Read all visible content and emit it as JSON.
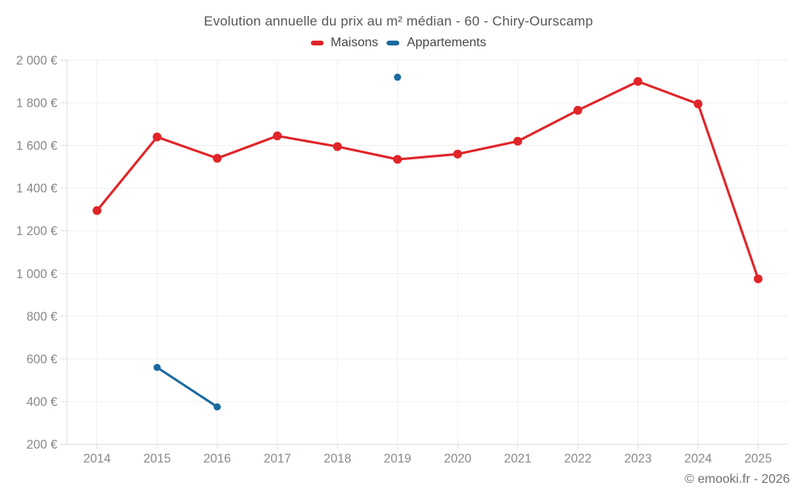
{
  "page": {
    "background": "#ffffff"
  },
  "footer": {
    "copyright": "© emooki.fr - 2026"
  },
  "chart_data": {
    "type": "line",
    "title": "Evolution annuelle du prix au m² médian - 60 - Chiry-Ourscamp",
    "xlabel": "",
    "ylabel": "",
    "categories": [
      "2014",
      "2015",
      "2016",
      "2017",
      "2018",
      "2019",
      "2020",
      "2021",
      "2022",
      "2023",
      "2024",
      "2025"
    ],
    "series": [
      {
        "name": "Maisons",
        "color": "#e02428",
        "point_radius": 5.5,
        "line_width": 3,
        "values": [
          1295,
          1640,
          1540,
          1645,
          1595,
          1535,
          1560,
          1620,
          1765,
          1900,
          1795,
          975
        ]
      },
      {
        "name": "Appartements",
        "color": "#1a6a9f",
        "point_radius": 4.5,
        "line_width": 3,
        "values": [
          null,
          560,
          375,
          null,
          null,
          1920,
          null,
          null,
          null,
          null,
          null,
          null
        ]
      }
    ],
    "ylim": [
      200,
      2000
    ],
    "y_step": 200,
    "y_tick_labels": [
      "2 000 €",
      "1 800 €",
      "1 600 €",
      "1 400 €",
      "1 200 €",
      "1 000 €",
      "800 €",
      "600 €",
      "400 €",
      "200 €"
    ],
    "currency": "€",
    "grid": true,
    "legend_position": "top",
    "colors": {
      "grid_line": "#efefef",
      "axis_line": "#dfdfdf",
      "tick_text": "#85888b",
      "title_text": "#54575b",
      "legend_text": "#44474a",
      "footer_text": "#6e7174",
      "background": "#ffffff"
    }
  }
}
